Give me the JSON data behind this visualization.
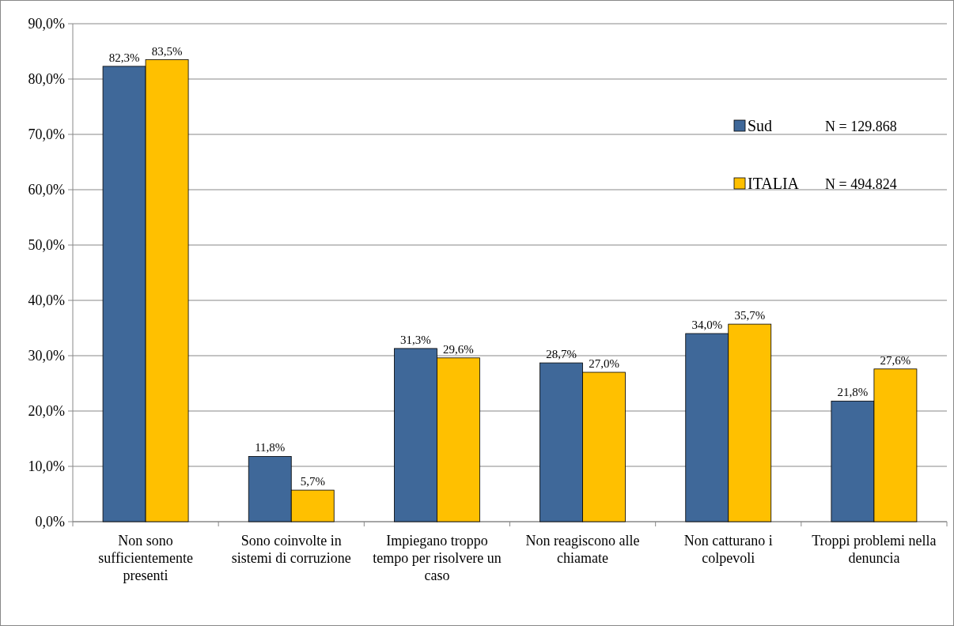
{
  "chart_data": {
    "type": "bar",
    "categories": [
      "Non sono sufficientemente presenti",
      "Sono coinvolte in sistemi di corruzione",
      "Impiegano troppo tempo per risolvere un caso",
      "Non reagiscono alle chiamate",
      "Non catturano i colpevoli",
      "Troppi problemi nella denuncia"
    ],
    "series": [
      {
        "name": "Sud",
        "color": "#3f6899",
        "values": [
          82.3,
          11.8,
          31.3,
          28.7,
          34.0,
          21.8
        ],
        "value_labels": [
          "82,3%",
          "11,8%",
          "31,3%",
          "28,7%",
          "34,0%",
          "21,8%"
        ]
      },
      {
        "name": "ITALIA",
        "color": "#ffc000",
        "values": [
          83.5,
          5.7,
          29.6,
          27.0,
          35.7,
          27.6
        ],
        "value_labels": [
          "83,5%",
          "5,7%",
          "29,6%",
          "27,0%",
          "35,7%",
          "27,6%"
        ]
      }
    ],
    "ylim": [
      0,
      90
    ],
    "yticks": [
      {
        "value": 0,
        "label": "0,0%"
      },
      {
        "value": 10,
        "label": "10,0%"
      },
      {
        "value": 20,
        "label": "20,0%"
      },
      {
        "value": 30,
        "label": "30,0%"
      },
      {
        "value": 40,
        "label": "40,0%"
      },
      {
        "value": 50,
        "label": "50,0%"
      },
      {
        "value": 60,
        "label": "60,0%"
      },
      {
        "value": 70,
        "label": "70,0%"
      },
      {
        "value": 80,
        "label": "80,0%"
      },
      {
        "value": 90,
        "label": "90,0%"
      }
    ],
    "grid": "y",
    "legend": "top right",
    "annotations": [
      "N = 129.868",
      "N = 494.824"
    ]
  }
}
